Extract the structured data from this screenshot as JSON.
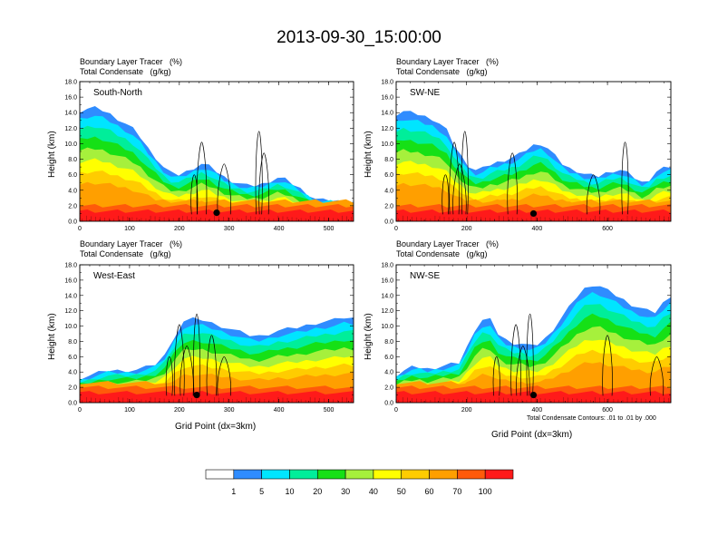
{
  "figure": {
    "title": "2013-09-30_15:00:00",
    "x_axis_title": "Grid Point (dx=3km)",
    "y_axis_title": "Height (km)",
    "contour_note": "Total Condensate Contours: .01 to .01 by .000"
  },
  "chart_data": [
    {
      "type": "heatmap",
      "name": "South-North",
      "title_line1": "Boundary Layer Tracer   (%)",
      "title_line2": "Total Condensate   (g/kg)",
      "panel_label": "South-North",
      "xlim": [
        0,
        550
      ],
      "ylim": [
        0,
        18
      ],
      "x_ticks": [
        0,
        100,
        200,
        300,
        400,
        500
      ],
      "y_ticks": [
        "0.0",
        "2.0",
        "4.0",
        "6.0",
        "8.0",
        "10.0",
        "12.0",
        "14.0",
        "16.0",
        "18.0"
      ],
      "tracer_top_km": [
        14.2,
        14.5,
        14.6,
        14.3,
        13.8,
        13.2,
        12.6,
        11.9,
        10.8,
        9.4,
        8.2,
        7.0,
        6.2,
        6.0,
        6.4,
        6.9,
        7.4,
        7.1,
        6.4,
        5.7,
        5.2,
        4.9,
        4.6,
        4.6,
        4.8,
        5.2,
        5.6,
        5.4,
        4.8,
        4.2,
        3.5,
        2.9,
        2.7,
        2.7,
        2.6,
        2.6,
        2.5
      ],
      "marker_x": 275,
      "marker_y_km": 1.1,
      "cloud_columns_x": [
        230,
        245,
        290,
        360,
        370
      ]
    },
    {
      "type": "heatmap",
      "name": "SW-NE",
      "title_line1": "Boundary Layer Tracer   (%)",
      "title_line2": "Total Condensate   (g/kg)",
      "panel_label": "SW-NE",
      "xlim": [
        0,
        780
      ],
      "ylim": [
        0,
        18
      ],
      "x_ticks": [
        0,
        200,
        400,
        600
      ],
      "y_ticks": [
        "0.0",
        "2.0",
        "4.0",
        "6.0",
        "8.0",
        "10.0",
        "12.0",
        "14.0",
        "16.0",
        "18.0"
      ],
      "tracer_top_km": [
        13.8,
        14.2,
        14.0,
        13.8,
        13.5,
        13.2,
        12.6,
        11.7,
        9.8,
        8.4,
        7.2,
        6.6,
        6.8,
        7.3,
        7.6,
        7.9,
        8.2,
        8.6,
        9.2,
        9.8,
        10.0,
        9.4,
        8.4,
        7.4,
        6.8,
        6.5,
        6.1,
        5.9,
        5.8,
        6.2,
        6.5,
        6.6,
        6.2,
        5.6,
        5.0,
        5.4,
        6.4,
        6.8,
        7.0
      ],
      "marker_x": 390,
      "marker_y_km": 1.0,
      "cloud_columns_x": [
        140,
        165,
        180,
        195,
        330,
        560,
        650
      ]
    },
    {
      "type": "heatmap",
      "name": "West-East",
      "title_line1": "Boundary Layer Tracer   (%)",
      "title_line2": "Total Condensate   (g/kg)",
      "panel_label": "West-East",
      "xlim": [
        0,
        550
      ],
      "ylim": [
        0,
        18
      ],
      "x_ticks": [
        0,
        100,
        200,
        300,
        400,
        500
      ],
      "y_ticks": [
        "0.0",
        "2.0",
        "4.0",
        "6.0",
        "8.0",
        "10.0",
        "12.0",
        "14.0",
        "16.0",
        "18.0"
      ],
      "tracer_top_km": [
        3.2,
        3.5,
        3.9,
        4.2,
        4.2,
        4.2,
        4.3,
        4.6,
        5.0,
        6.2,
        8.6,
        10.6,
        10.9,
        10.8,
        10.4,
        10.0,
        9.6,
        9.2,
        8.8,
        8.7,
        9.0,
        9.4,
        9.6,
        9.8,
        10.1,
        10.4,
        10.6,
        10.8,
        11.1,
        11.0
      ],
      "marker_x": 235,
      "marker_y_km": 1.0,
      "cloud_columns_x": [
        180,
        200,
        215,
        235,
        265,
        290
      ]
    },
    {
      "type": "heatmap",
      "name": "NW-SE",
      "title_line1": "Boundary Layer Tracer   (%)",
      "title_line2": "Total Condensate   (g/kg)",
      "panel_label": "NW-SE",
      "xlim": [
        0,
        780
      ],
      "ylim": [
        0,
        18
      ],
      "x_ticks": [
        0,
        200,
        400,
        600
      ],
      "y_ticks": [
        "0.0",
        "2.0",
        "4.0",
        "6.0",
        "8.0",
        "10.0",
        "12.0",
        "14.0",
        "16.0",
        "18.0"
      ],
      "tracer_top_km": [
        3.6,
        4.2,
        4.6,
        4.6,
        4.4,
        4.6,
        4.8,
        5.0,
        5.2,
        7.2,
        9.5,
        10.8,
        10.8,
        9.0,
        8.2,
        7.8,
        7.7,
        7.4,
        7.6,
        8.4,
        9.6,
        11.0,
        12.4,
        13.8,
        14.9,
        15.4,
        15.2,
        14.6,
        14.0,
        13.4,
        12.8,
        12.4,
        12.0,
        11.8,
        13.0,
        14.0
      ],
      "marker_x": 390,
      "marker_y_km": 1.0,
      "cloud_columns_x": [
        285,
        340,
        360,
        380,
        600,
        740
      ]
    }
  ],
  "colorbar": {
    "labels": [
      "1",
      "5",
      "10",
      "20",
      "30",
      "40",
      "50",
      "60",
      "70",
      "100"
    ],
    "colors": [
      "#ffffff",
      "#2f8cff",
      "#00e5ff",
      "#00ee9a",
      "#16e016",
      "#a6f03c",
      "#ffff00",
      "#ffcc00",
      "#ff9f00",
      "#ff5a0a",
      "#ff1a1a"
    ]
  }
}
